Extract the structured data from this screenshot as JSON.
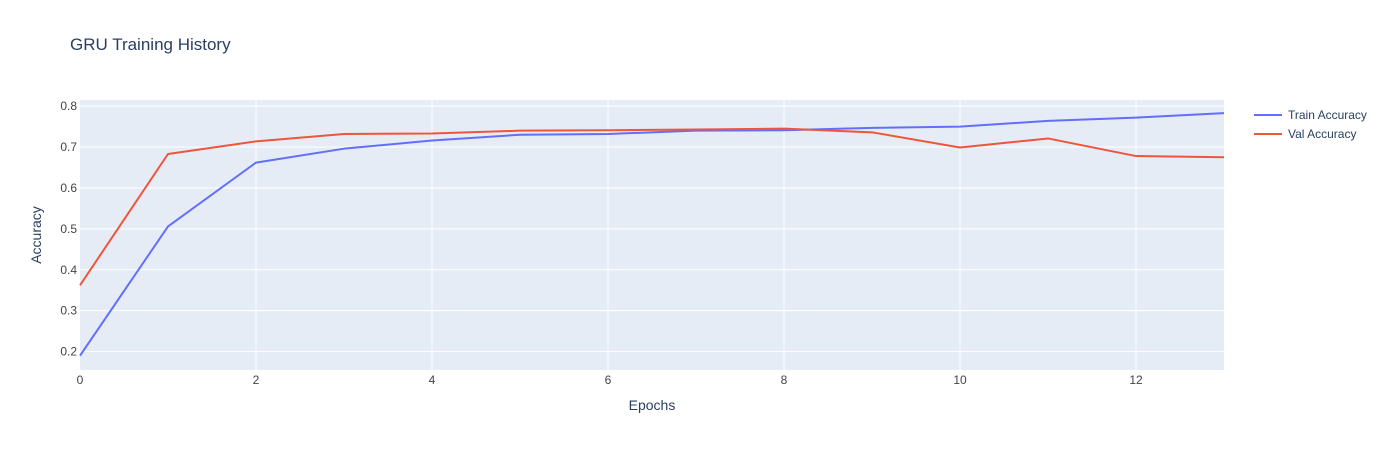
{
  "chart_data": {
    "type": "line",
    "title": "GRU Training History",
    "xlabel": "Epochs",
    "ylabel": "Accuracy",
    "xlim": [
      0,
      13
    ],
    "ylim": [
      0.155,
      0.815
    ],
    "x_ticks": [
      0,
      2,
      4,
      6,
      8,
      10,
      12
    ],
    "y_ticks": [
      0.2,
      0.3,
      0.4,
      0.5,
      0.6,
      0.7,
      0.8
    ],
    "grid": true,
    "legend_position": "top-right",
    "x": [
      0,
      1,
      2,
      3,
      4,
      5,
      6,
      7,
      8,
      9,
      10,
      11,
      12,
      13
    ],
    "series": [
      {
        "name": "Train Accuracy",
        "color": "#636efa",
        "values": [
          0.19,
          0.506,
          0.662,
          0.696,
          0.716,
          0.73,
          0.732,
          0.74,
          0.741,
          0.747,
          0.75,
          0.764,
          0.772,
          0.783
        ]
      },
      {
        "name": "Val Accuracy",
        "color": "#ef553b",
        "values": [
          0.362,
          0.683,
          0.714,
          0.732,
          0.733,
          0.74,
          0.741,
          0.743,
          0.745,
          0.736,
          0.699,
          0.721,
          0.678,
          0.675
        ]
      }
    ],
    "colors": {
      "plot_background": "#e5ecf6",
      "grid": "#ffffff",
      "text": "#2a3f5f",
      "tick_text": "#444444"
    }
  }
}
